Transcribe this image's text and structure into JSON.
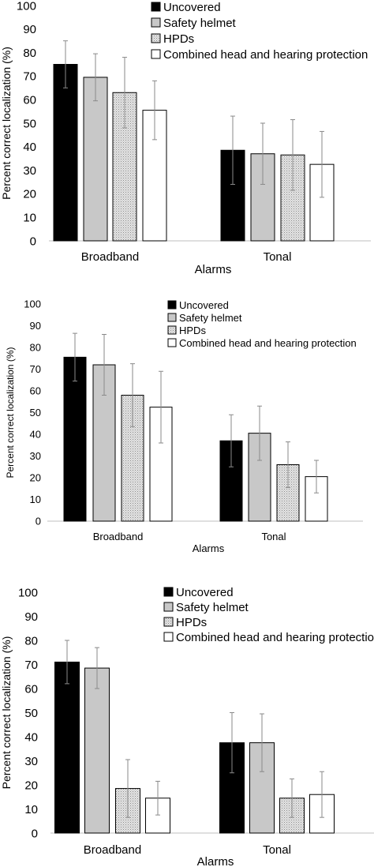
{
  "legend_labels": [
    "Uncovered",
    "Safety helmet",
    "HPDs",
    "Combined head and hearing protection"
  ],
  "colors": {
    "uncovered": "#000000",
    "safety_helmet": "#c8c8c8",
    "hpds": "#e4e4e4",
    "combined": "#ffffff",
    "error_bar": "#8a8a8a"
  },
  "chart_data": [
    {
      "type": "bar",
      "categories": [
        "Broadband",
        "Tonal"
      ],
      "xlabel": "Alarms",
      "ylabel": "Percent correct localization (%)",
      "ylim": [
        0,
        100
      ],
      "yticks": [
        "0",
        "10",
        "20",
        "30",
        "40",
        "50",
        "60",
        "70",
        "80",
        "90",
        "100"
      ],
      "legend_position": "top-right",
      "grid": false,
      "series": [
        {
          "name": "Uncovered",
          "values": [
            75,
            38.5
          ],
          "errors": [
            10,
            14.5
          ]
        },
        {
          "name": "Safety helmet",
          "values": [
            69.5,
            37
          ],
          "errors": [
            10,
            13
          ]
        },
        {
          "name": "HPDs",
          "values": [
            63,
            36.5
          ],
          "errors": [
            15,
            15
          ]
        },
        {
          "name": "Combined head and hearing protection",
          "values": [
            55.5,
            32.5
          ],
          "errors": [
            12.5,
            14
          ]
        }
      ]
    },
    {
      "type": "bar",
      "categories": [
        "Broadband",
        "Tonal"
      ],
      "xlabel": "Alarms",
      "ylabel": "Percent correct localization (%)",
      "ylim": [
        0,
        100
      ],
      "yticks": [
        "0",
        "10",
        "20",
        "30",
        "40",
        "50",
        "60",
        "70",
        "80",
        "90",
        "100"
      ],
      "legend_position": "top-right",
      "grid": false,
      "series": [
        {
          "name": "Uncovered",
          "values": [
            75.5,
            37
          ],
          "errors": [
            11,
            12
          ]
        },
        {
          "name": "Safety helmet",
          "values": [
            72,
            40.5
          ],
          "errors": [
            14,
            12.5
          ]
        },
        {
          "name": "HPDs",
          "values": [
            58,
            26
          ],
          "errors": [
            14.5,
            10.5
          ]
        },
        {
          "name": "Combined head and hearing protection",
          "values": [
            52.5,
            20.5
          ],
          "errors": [
            16.5,
            7.5
          ]
        }
      ]
    },
    {
      "type": "bar",
      "categories": [
        "Broadband",
        "Tonal"
      ],
      "xlabel": "Alarms",
      "ylabel": "Percent correct localization (%)",
      "ylim": [
        0,
        100
      ],
      "yticks": [
        "0",
        "10",
        "20",
        "30",
        "40",
        "50",
        "60",
        "70",
        "80",
        "90",
        "100"
      ],
      "legend_position": "top-right",
      "grid": false,
      "series": [
        {
          "name": "Uncovered",
          "values": [
            71,
            37.5
          ],
          "errors": [
            9,
            12.5
          ]
        },
        {
          "name": "Safety helmet",
          "values": [
            68.5,
            37.5
          ],
          "errors": [
            8.5,
            12
          ]
        },
        {
          "name": "HPDs",
          "values": [
            18.5,
            14.5
          ],
          "errors": [
            12,
            8
          ]
        },
        {
          "name": "Combined head and hearing protection",
          "values": [
            14.5,
            16
          ],
          "errors": [
            7,
            9.5
          ]
        }
      ]
    }
  ]
}
